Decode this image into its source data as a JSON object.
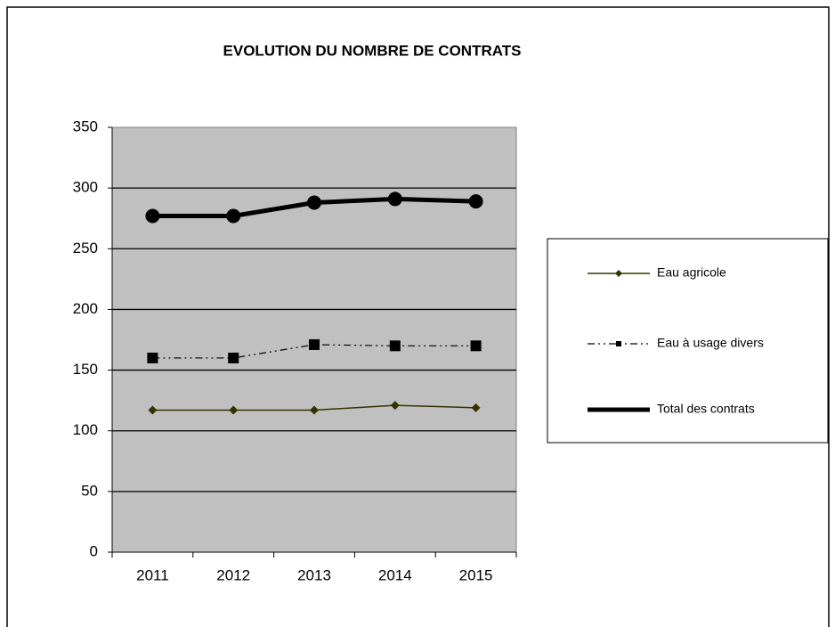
{
  "chart_data": {
    "type": "line",
    "title": "EVOLUTION  DU NOMBRE  DE CONTRATS",
    "categories": [
      "2011",
      "2012",
      "2013",
      "2014",
      "2015"
    ],
    "series": [
      {
        "name": "Eau agricole",
        "color": "#333300",
        "marker": "diamond",
        "values": [
          117,
          117,
          117,
          121,
          119
        ]
      },
      {
        "name": "Eau à usage divers",
        "color": "#000000",
        "marker": "square",
        "values": [
          160,
          160,
          171,
          170,
          170
        ]
      },
      {
        "name": "Total des contrats",
        "color": "#000000",
        "marker": "circle",
        "values": [
          277,
          277,
          288,
          291,
          289
        ]
      }
    ],
    "ylim": [
      0,
      350
    ],
    "yticks": [
      0,
      50,
      100,
      150,
      200,
      250,
      300,
      350
    ],
    "grid": true,
    "legend": "right",
    "plot_background": "#c0c0c0"
  }
}
